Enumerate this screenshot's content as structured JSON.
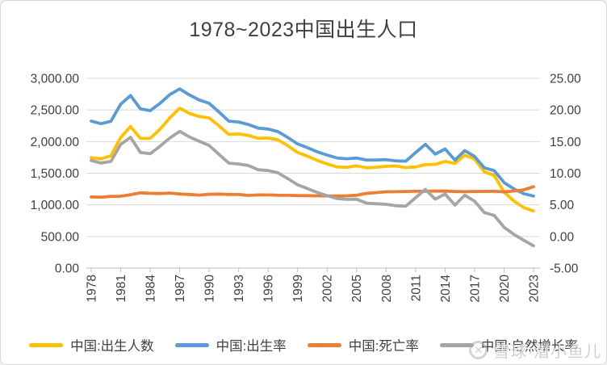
{
  "title": "1978~2023中国出生人口",
  "watermark": {
    "logo": "xueqiu-logo",
    "text": "雪球·潜小鱼儿"
  },
  "colors": {
    "background": "#FFFFFF",
    "border": "#D8D8D8",
    "grid": "#D9D9D9",
    "axis_line": "#BFBFBF",
    "text": "#404040"
  },
  "chart_data": {
    "type": "line",
    "title": "1978~2023中国出生人口",
    "x": [
      1978,
      1979,
      1980,
      1981,
      1982,
      1983,
      1984,
      1985,
      1986,
      1987,
      1988,
      1989,
      1990,
      1991,
      1992,
      1993,
      1994,
      1995,
      1996,
      1997,
      1998,
      1999,
      2000,
      2001,
      2002,
      2003,
      2004,
      2005,
      2006,
      2007,
      2008,
      2009,
      2010,
      2011,
      2012,
      2013,
      2014,
      2015,
      2016,
      2017,
      2018,
      2019,
      2020,
      2021,
      2022,
      2023
    ],
    "x_tick_labels": [
      "1978",
      "1981",
      "1984",
      "1987",
      "1990",
      "1993",
      "1996",
      "1999",
      "2002",
      "2005",
      "2008",
      "2011",
      "2014",
      "2017",
      "2020",
      "2023"
    ],
    "left_axis": {
      "min": 0,
      "max": 3000,
      "step": 500,
      "tick_labels": [
        "3,000.00",
        "2,500.00",
        "2,000.00",
        "1,500.00",
        "1,000.00",
        "500.00",
        "0.00"
      ]
    },
    "right_axis": {
      "min": -5,
      "max": 25,
      "step": 5,
      "tick_labels": [
        "25.00",
        "20.00",
        "15.00",
        "10.00",
        "5.00",
        "0.00",
        "-5.00"
      ]
    },
    "grid": true,
    "legend_position": "bottom",
    "series": [
      {
        "name": "中国:出生人数",
        "color": "#FFC000",
        "axis": "left",
        "values": [
          1745,
          1727,
          1776,
          2064,
          2238,
          2052,
          2050,
          2196,
          2374,
          2529,
          2445,
          2396,
          2374,
          2250,
          2113,
          2120,
          2098,
          2052,
          2057,
          2028,
          1934,
          1827,
          1771,
          1702,
          1647,
          1599,
          1593,
          1617,
          1585,
          1594,
          1608,
          1615,
          1588,
          1600,
          1635,
          1640,
          1687,
          1655,
          1786,
          1723,
          1523,
          1465,
          1200,
          1062,
          956,
          902
        ]
      },
      {
        "name": "中国:出生率",
        "color": "#5B9BD5",
        "axis": "right",
        "values": [
          18.25,
          17.82,
          18.21,
          20.91,
          22.28,
          20.19,
          19.9,
          21.04,
          22.43,
          23.33,
          22.37,
          21.58,
          21.06,
          19.68,
          18.24,
          18.09,
          17.7,
          17.12,
          16.98,
          16.57,
          15.64,
          14.64,
          14.03,
          13.38,
          12.86,
          12.41,
          12.29,
          12.4,
          12.09,
          12.1,
          12.14,
          11.95,
          11.9,
          13.27,
          14.57,
          13.03,
          13.83,
          12.07,
          13.57,
          12.64,
          10.86,
          10.41,
          8.52,
          7.52,
          6.77,
          6.39
        ]
      },
      {
        "name": "中国:死亡率",
        "color": "#ED7D31",
        "axis": "right",
        "values": [
          6.25,
          6.21,
          6.34,
          6.36,
          6.6,
          6.9,
          6.82,
          6.78,
          6.86,
          6.72,
          6.64,
          6.54,
          6.67,
          6.7,
          6.64,
          6.64,
          6.49,
          6.57,
          6.56,
          6.51,
          6.5,
          6.46,
          6.45,
          6.43,
          6.41,
          6.4,
          6.42,
          6.51,
          6.81,
          6.93,
          7.06,
          7.08,
          7.11,
          7.14,
          7.15,
          7.16,
          7.16,
          7.11,
          7.09,
          7.11,
          7.13,
          7.14,
          7.07,
          7.18,
          7.37,
          7.87
        ]
      },
      {
        "name": "中国:自然增长率",
        "color": "#A5A5A5",
        "axis": "right",
        "values": [
          12.0,
          11.61,
          11.87,
          14.55,
          15.68,
          13.29,
          13.08,
          14.26,
          15.57,
          16.61,
          15.73,
          15.04,
          14.39,
          12.98,
          11.6,
          11.45,
          11.21,
          10.55,
          10.42,
          10.06,
          9.14,
          8.18,
          7.58,
          6.95,
          6.45,
          6.01,
          5.87,
          5.89,
          5.28,
          5.17,
          5.08,
          4.87,
          4.79,
          6.13,
          7.43,
          5.9,
          6.71,
          4.96,
          6.53,
          5.58,
          3.78,
          3.32,
          1.45,
          0.34,
          -0.6,
          -1.48
        ]
      }
    ]
  }
}
